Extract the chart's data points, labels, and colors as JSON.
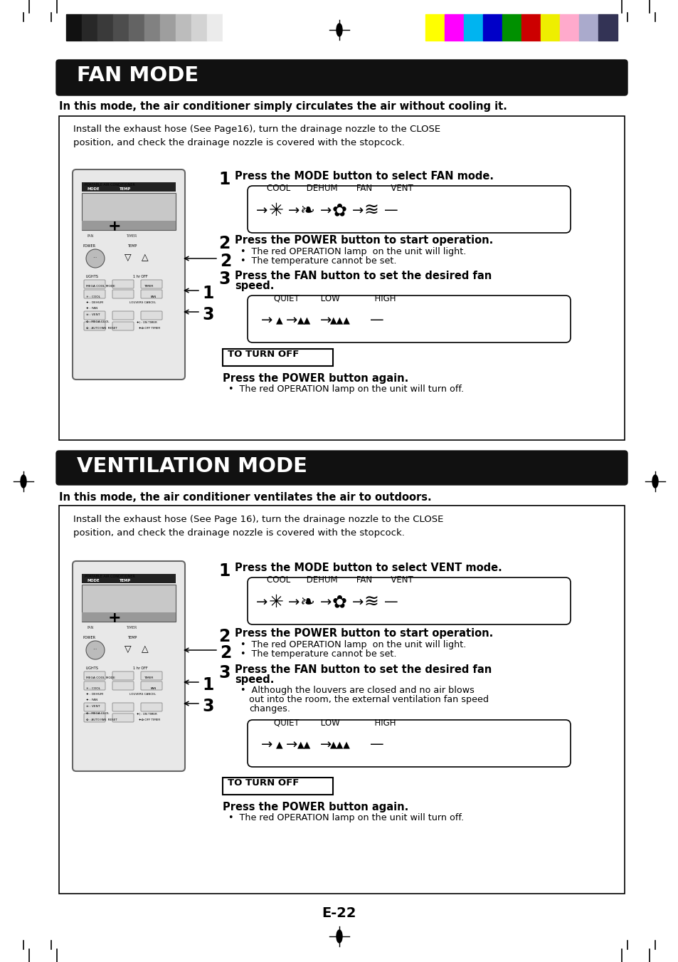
{
  "page_bg": "#ffffff",
  "header_gray_colors": [
    "#111111",
    "#282828",
    "#3a3a3a",
    "#4d4d4d",
    "#636363",
    "#818181",
    "#9e9e9e",
    "#bcbcbc",
    "#d3d3d3",
    "#ebebeb",
    "#ffffff"
  ],
  "header_color_bars": [
    "#ffff00",
    "#ff00ff",
    "#00b4f0",
    "#0000c8",
    "#009000",
    "#cc0000",
    "#eeee00",
    "#ffaacc",
    "#aaaacc",
    "#333355"
  ],
  "section1_title": "FAN MODE",
  "section1_subtitle": "In this mode, the air conditioner simply circulates the air without cooling it.",
  "box1_intro": "Install the exhaust hose (See Page16), turn the drainage nozzle to the CLOSE\nposition, and check the drainage nozzle is covered with the stopcock.",
  "step1_1": "Press the MODE button to select FAN mode.",
  "step1_1_sub": "COOL      DEHUM       FAN       VENT",
  "step1_2": "Press the POWER button to start operation.",
  "step1_2_b1": "The red OPERATION lamp  on the unit will light.",
  "step1_2_b2": "The temperature cannot be set.",
  "step1_3a": "Press the FAN button to set the desired fan",
  "step1_3b": "speed.",
  "step1_3_sub": "QUIET        LOW             HIGH",
  "turn_off1": "TO TURN OFF",
  "turn_off1_bold": "Press the POWER button again.",
  "turn_off1_b": "The red OPERATION lamp on the unit will turn off.",
  "section2_title": "VENTILATION MODE",
  "section2_subtitle": "In this mode, the air conditioner ventilates the air to outdoors.",
  "box2_intro": "Install the exhaust hose (See Page 16), turn the drainage nozzle to the CLOSE\nposition, and check the drainage nozzle is covered with the stopcock.",
  "step2_1": "Press the MODE button to select VENT mode.",
  "step2_1_sub": "COOL      DEHUM       FAN       VENT",
  "step2_2": "Press the POWER button to start operation.",
  "step2_2_b1": "The red OPERATION lamp  on the unit will light.",
  "step2_2_b2": "The temperature cannot be set.",
  "step2_3a": "Press the FAN button to set the desired fan",
  "step2_3b": "speed.",
  "step2_3_extra1": "Although the louvers are closed and no air blows",
  "step2_3_extra2": "out into the room, the external ventilation fan speed",
  "step2_3_extra3": "changes.",
  "step2_3_sub": "QUIET        LOW             HIGH",
  "turn_off2": "TO TURN OFF",
  "turn_off2_bold": "Press the POWER button again.",
  "turn_off2_b": "The red OPERATION lamp on the unit will turn off.",
  "page_num": "E-22"
}
